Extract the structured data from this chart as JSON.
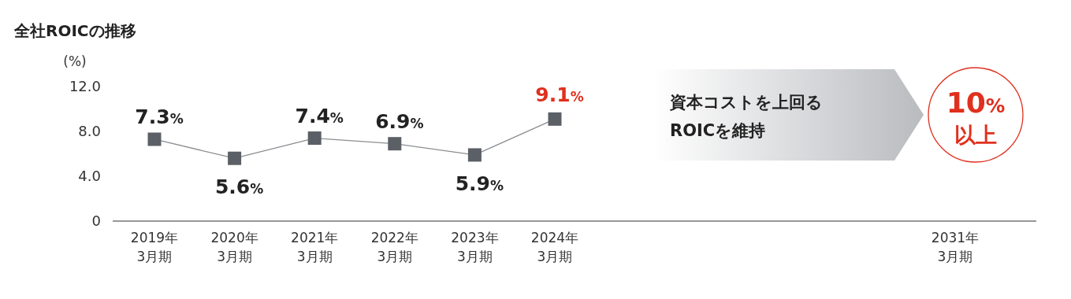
{
  "chart_data": {
    "type": "line",
    "title": "全社ROICの推移",
    "ylabel": "(%)",
    "categories": [
      "2019年\n3月期",
      "2020年\n3月期",
      "2021年\n3月期",
      "2022年\n3月期",
      "2023年\n3月期",
      "2024年\n3月期",
      null,
      null,
      null,
      null,
      "2031年\n3月期"
    ],
    "series": [
      {
        "color": "#5b6066",
        "values": [
          7.3,
          5.6,
          7.4,
          6.9,
          5.9,
          9.1,
          null,
          null,
          null,
          null,
          null
        ],
        "value_labels": [
          "7.3%",
          "5.6%",
          "7.4%",
          "6.9%",
          "5.9%",
          "9.1%",
          null,
          null,
          null,
          null,
          null
        ]
      }
    ],
    "annotations": [
      "資本コストを上回る\nROICを維持",
      "10%\n以上"
    ],
    "ylim": [
      0,
      12
    ],
    "yticks": [
      0,
      {
        "value": 4,
        "label": "4.0"
      },
      {
        "value": 8,
        "label": "8.0"
      },
      {
        "value": 12,
        "label": "12.0"
      }
    ],
    "marker": "square",
    "line_style": "solid"
  }
}
